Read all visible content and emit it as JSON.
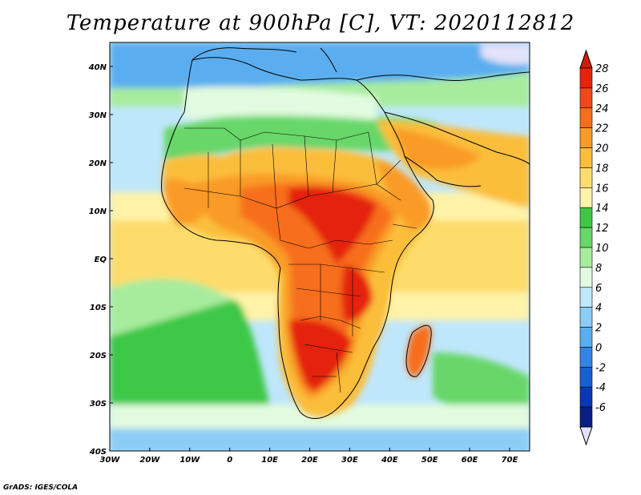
{
  "title": "Temperature at 900hPa [C], VT: 2020112812",
  "credit": "GrADS: IGES/COLA",
  "x_axis_labels": [
    "30W",
    "20W",
    "10W",
    "0",
    "10E",
    "20E",
    "30E",
    "40E",
    "50E",
    "60E",
    "70E"
  ],
  "y_axis_labels": [
    "40N",
    "30N",
    "20N",
    "10N",
    "EQ",
    "10S",
    "20S",
    "30S",
    "40S"
  ],
  "colorbar": {
    "labels": [
      "28",
      "26",
      "24",
      "22",
      "20",
      "18",
      "16",
      "14",
      "12",
      "10",
      "8",
      "6",
      "4",
      "2",
      "0",
      "-2",
      "-4",
      "-6"
    ],
    "colors": [
      "#e4240c",
      "#f0481a",
      "#f76e1a",
      "#f99b28",
      "#fbbe3a",
      "#fddc6c",
      "#fef3a8",
      "#3ec846",
      "#68d769",
      "#a7ec9d",
      "#e2fbe0",
      "#bfe7fb",
      "#8bcdf5",
      "#5aaeef",
      "#3384e6",
      "#1660d2",
      "#0a38b4",
      "#0a1e86"
    ],
    "over_color": "#d21c06",
    "under_color": "#e2e2fa"
  },
  "field_palette": {
    "ocean_cool_deep": "#5aaeef",
    "ocean_cool": "#8bcdf5",
    "ocean_mild": "#bfe7fb",
    "ocean_warm": "#fef3a8",
    "ocean_warmer": "#fddc6c",
    "land_green_dark": "#3ec846",
    "land_green": "#68d769",
    "land_green_light": "#a7ec9d",
    "land_pale": "#e2fbe0",
    "land_warm": "#fbbe3a",
    "land_hot": "#f99b28",
    "land_hotter": "#f76e1a",
    "land_hottest": "#e4240c",
    "cold_peak": "#e2e2fa"
  }
}
